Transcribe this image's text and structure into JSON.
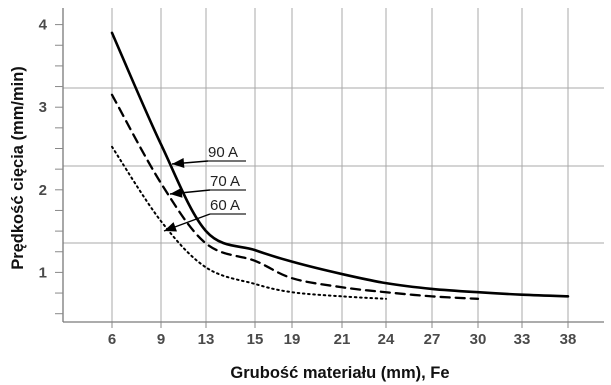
{
  "chart_data": {
    "type": "line",
    "xlabel": "Grubość materiału (mm), Fe",
    "ylabel": "Prędkość cięcia (mm/min)",
    "x_ticks": [
      "6",
      "9",
      "13",
      "15",
      "19",
      "21",
      "24",
      "27",
      "30",
      "33",
      "38"
    ],
    "y_ticks": [
      "1",
      "2",
      "3",
      "4"
    ],
    "grid": true,
    "series": [
      {
        "name": "90 A",
        "line_style": "solid",
        "x": [
          "6",
          "9",
          "13",
          "15",
          "19",
          "21",
          "24",
          "27",
          "30",
          "33",
          "38"
        ],
        "y": [
          3.9,
          2.55,
          1.5,
          1.27,
          1.13,
          0.98,
          0.87,
          0.8,
          0.76,
          0.73,
          0.71
        ]
      },
      {
        "name": "70 A",
        "line_style": "dashed",
        "x": [
          "6",
          "9",
          "13",
          "15",
          "19",
          "21",
          "24",
          "27",
          "30"
        ],
        "y": [
          3.15,
          2.08,
          1.35,
          1.14,
          0.93,
          0.82,
          0.76,
          0.71,
          0.68
        ]
      },
      {
        "name": "60 A",
        "line_style": "dotted",
        "x": [
          "6",
          "9",
          "13",
          "15",
          "19",
          "21",
          "24"
        ],
        "y": [
          2.52,
          1.62,
          1.06,
          0.86,
          0.76,
          0.71,
          0.68
        ]
      }
    ],
    "legend_placement": "annotated-arrows"
  }
}
